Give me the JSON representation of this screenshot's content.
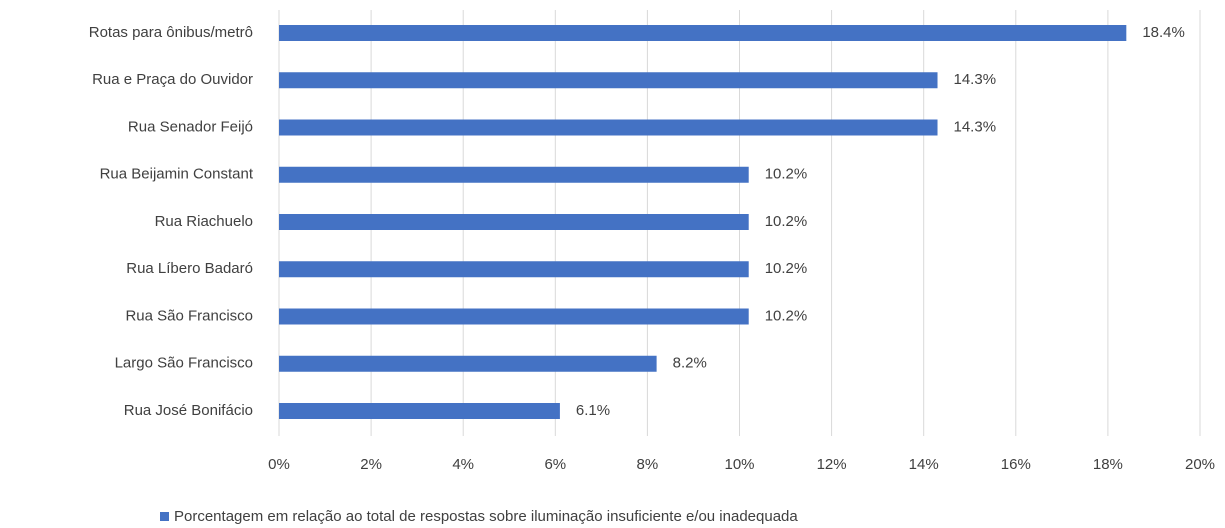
{
  "chart_data": {
    "type": "barh",
    "categories": [
      "Rotas para ônibus/metrô",
      "Rua e Praça do Ouvidor",
      "Rua Senador Feijó",
      "Rua Beijamin Constant",
      "Rua Riachuelo",
      "Rua Líbero Badaró",
      "Rua São Francisco",
      "Largo São Francisco",
      "Rua José Bonifácio"
    ],
    "series": [
      {
        "name": "Porcentagem em relação ao total de respostas sobre iluminação insuficiente e/ou inadequada",
        "color": "#4472c4",
        "values": [
          18.4,
          14.3,
          14.3,
          10.2,
          10.2,
          10.2,
          10.2,
          8.2,
          6.1
        ],
        "value_labels": [
          "18.4%",
          "14.3%",
          "14.3%",
          "10.2%",
          "10.2%",
          "10.2%",
          "10.2%",
          "8.2%",
          "6.1%"
        ]
      }
    ],
    "xlim": [
      0,
      20
    ],
    "xticks": [
      {
        "value": 0,
        "label": "0%"
      },
      {
        "value": 2,
        "label": "2%"
      },
      {
        "value": 4,
        "label": "4%"
      },
      {
        "value": 6,
        "label": "6%"
      },
      {
        "value": 8,
        "label": "8%"
      },
      {
        "value": 10,
        "label": "10%"
      },
      {
        "value": 12,
        "label": "12%"
      },
      {
        "value": 14,
        "label": "14%"
      },
      {
        "value": 16,
        "label": "16%"
      },
      {
        "value": 18,
        "label": "18%"
      },
      {
        "value": 20,
        "label": "20%"
      }
    ],
    "grid": true,
    "legend": "bottom"
  }
}
